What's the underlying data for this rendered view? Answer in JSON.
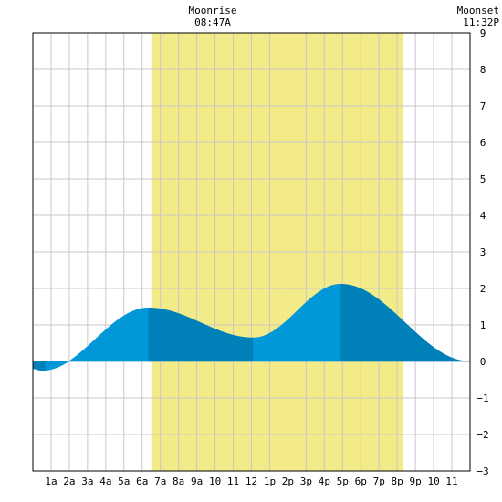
{
  "moonrise": {
    "label": "Moonrise",
    "time": "08:47A"
  },
  "moonset": {
    "label": "Moonset",
    "time": "11:32P"
  },
  "colors": {
    "daylight_band": "#f3ea88",
    "tide_fill_light": "#0098d8",
    "tide_fill_dark": "#0080b8",
    "grid": "#c8c8c8",
    "frame": "#000000"
  },
  "chart_data": {
    "type": "area",
    "title": "",
    "xlabel": "",
    "ylabel": "",
    "xlim": [
      0,
      24
    ],
    "ylim": [
      -3,
      9
    ],
    "grid": true,
    "x_tick_labels": [
      "1a",
      "2a",
      "3a",
      "4a",
      "5a",
      "6a",
      "7a",
      "8a",
      "9a",
      "10",
      "11",
      "12",
      "1p",
      "2p",
      "3p",
      "4p",
      "5p",
      "6p",
      "7p",
      "8p",
      "9p",
      "10",
      "11"
    ],
    "y_ticks": [
      -3,
      -2,
      -1,
      0,
      1,
      2,
      3,
      4,
      5,
      6,
      7,
      8,
      9
    ],
    "daylight_band_hours": [
      6.5,
      20.3
    ],
    "shade_breaks_hours": [
      0.7,
      6.35,
      12.1,
      16.9
    ],
    "tide_extrema": [
      {
        "hour": 0.0,
        "height": -0.2
      },
      {
        "hour": 0.5,
        "height": -0.25
      },
      {
        "hour": 6.35,
        "height": 1.47
      },
      {
        "hour": 12.1,
        "height": 0.65
      },
      {
        "hour": 16.9,
        "height": 2.12
      },
      {
        "hour": 24.0,
        "height": 0.0
      }
    ]
  }
}
